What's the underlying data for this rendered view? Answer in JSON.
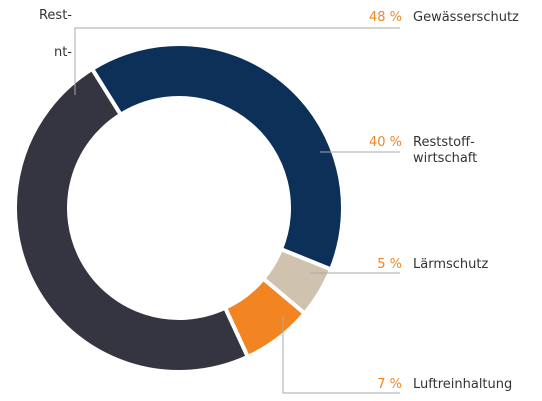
{
  "annotations": [
    "Rest-",
    "nt-"
  ],
  "chart_data": {
    "type": "donut",
    "categories": [
      "Reststoff-\nwirtschaft",
      "Lärmschutz",
      "Luftreinhaltung",
      "Gewässerschutz"
    ],
    "values": [
      40,
      5,
      7,
      48
    ],
    "value_labels": [
      "40 %",
      "5 %",
      "7 %",
      "48 %"
    ],
    "colors": [
      "#0d3059",
      "#cfc3b0",
      "#f28522",
      "#343540"
    ]
  }
}
